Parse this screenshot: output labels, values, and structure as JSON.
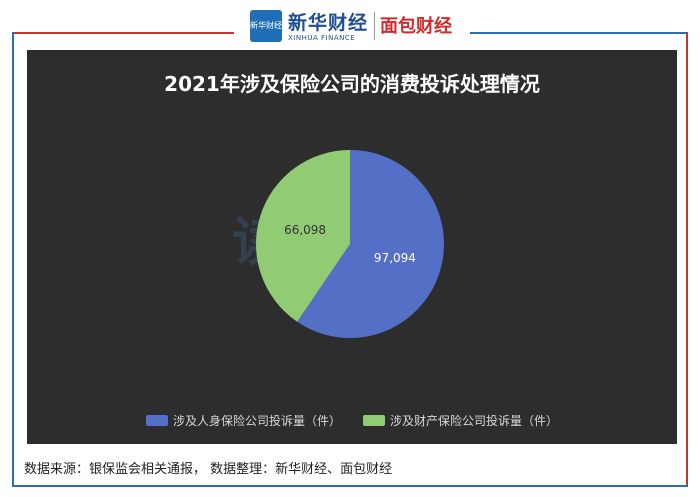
{
  "header": {
    "logo_mark_text": "新华财经",
    "xinhua_name": "新华财经",
    "xinhua_english": "XINHUA FINANCE",
    "mianbao_name": "面包财经"
  },
  "watermark": "读财报",
  "chart_data": {
    "type": "pie",
    "title": "2021年涉及保险公司的消费投诉处理情况",
    "categories": [
      "涉及人身保险公司投诉量（件）",
      "涉及财产保险公司投诉量（件）"
    ],
    "values": [
      97094,
      66098
    ],
    "value_labels": [
      "97,094",
      "66,098"
    ],
    "colors": [
      "#5470c6",
      "#91cc75"
    ],
    "legend_position": "bottom"
  },
  "footer": {
    "note": "数据来源：银保监会相关通报， 数据整理：新华财经、面包财经"
  }
}
